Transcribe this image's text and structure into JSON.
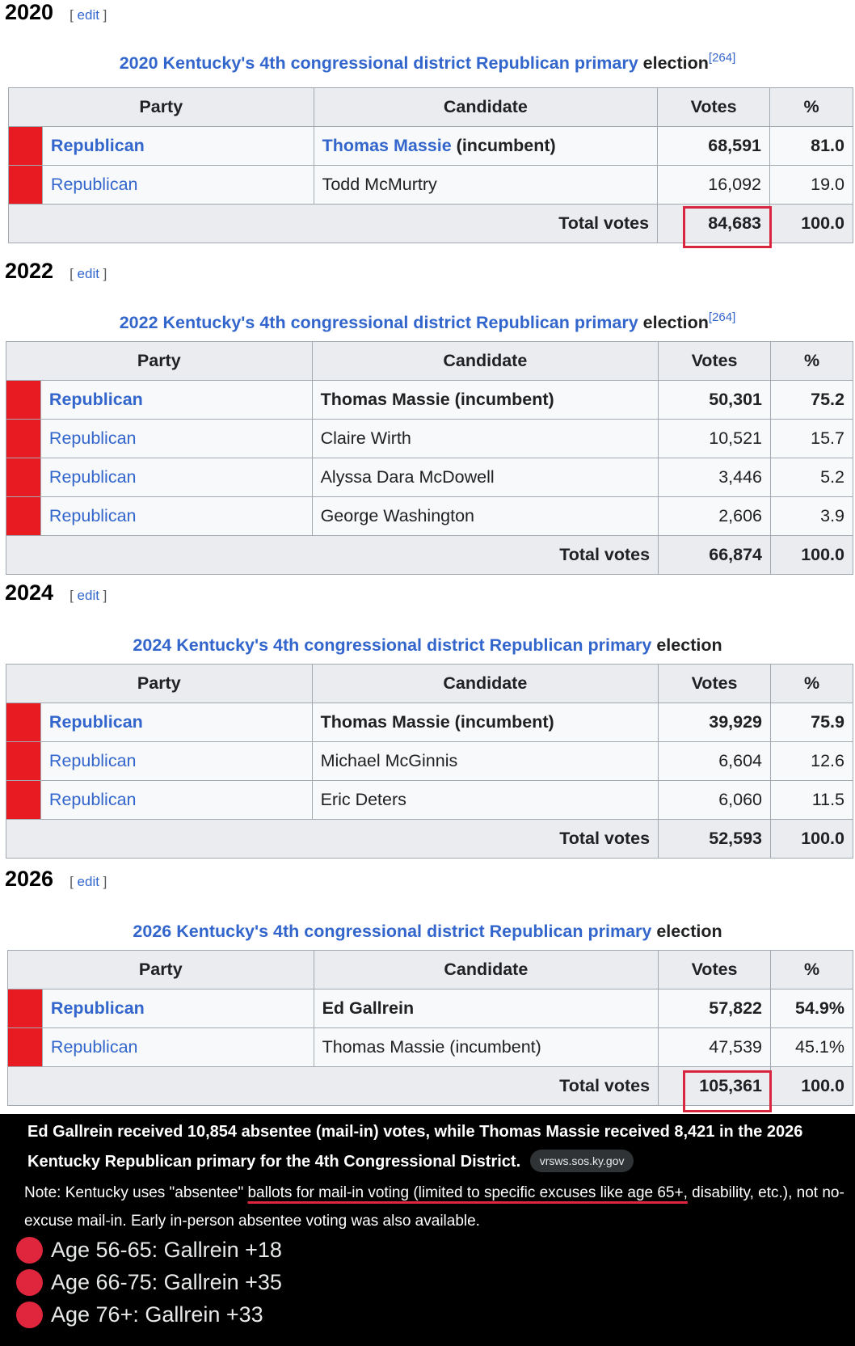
{
  "edit_label": "edit",
  "col_headers": {
    "party": "Party",
    "candidate": "Candidate",
    "votes": "Votes",
    "pct": "%"
  },
  "total_label": "Total votes",
  "sections": [
    {
      "year": "2020",
      "caption_link": "2020 Kentucky's 4th congressional district Republican primary",
      "caption_rest": " election",
      "caption_ref": "[264]",
      "rows": [
        {
          "party": "Republican",
          "candidate": "Thomas Massie",
          "suffix": " (incumbent)",
          "votes": "68,591",
          "pct": "81.0"
        },
        {
          "party": "Republican",
          "candidate": "Todd McMurtry",
          "suffix": "",
          "votes": "16,092",
          "pct": "19.0"
        }
      ],
      "total": {
        "votes": "84,683",
        "pct": "100.0"
      }
    },
    {
      "year": "2022",
      "caption_link": "2022 Kentucky's 4th congressional district Republican primary",
      "caption_rest": " election",
      "caption_ref": "[264]",
      "rows": [
        {
          "party": "Republican",
          "candidate": "Thomas Massie (incumbent)",
          "votes": "50,301",
          "pct": "75.2"
        },
        {
          "party": "Republican",
          "candidate": "Claire Wirth",
          "votes": "10,521",
          "pct": "15.7"
        },
        {
          "party": "Republican",
          "candidate": "Alyssa Dara McDowell",
          "votes": "3,446",
          "pct": "5.2"
        },
        {
          "party": "Republican",
          "candidate": "George Washington",
          "votes": "2,606",
          "pct": "3.9"
        }
      ],
      "total": {
        "votes": "66,874",
        "pct": "100.0"
      }
    },
    {
      "year": "2024",
      "caption_link": "2024 Kentucky's 4th congressional district Republican primary",
      "caption_rest": " election",
      "rows": [
        {
          "party": "Republican",
          "candidate": "Thomas Massie (incumbent)",
          "votes": "39,929",
          "pct": "75.9"
        },
        {
          "party": "Republican",
          "candidate": "Michael McGinnis",
          "votes": "6,604",
          "pct": "12.6"
        },
        {
          "party": "Republican",
          "candidate": "Eric Deters",
          "votes": "6,060",
          "pct": "11.5"
        }
      ],
      "total": {
        "votes": "52,593",
        "pct": "100.0"
      }
    },
    {
      "year": "2026",
      "caption_link": "2026 Kentucky's 4th congressional district Republican primary",
      "caption_rest": " election",
      "rows": [
        {
          "party": "Republican",
          "candidate": "Ed Gallrein",
          "votes": "57,822",
          "pct": "54.9%"
        },
        {
          "party": "Republican",
          "candidate": "Thomas Massie (incumbent)",
          "votes": "47,539",
          "pct": "45.1%"
        }
      ],
      "total": {
        "votes": "105,361",
        "pct": "100.0"
      }
    }
  ],
  "post": {
    "summary": "Ed Gallrein received 10,854 absentee (mail-in) votes, while Thomas Massie received 8,421 in the 2026 Kentucky Republican primary for the 4th Congressional District.",
    "source_chip": "vrsws.sos.ky.gov",
    "note_before": "Note: Kentucky uses \"absentee\" ",
    "note_underlined": "ballots for mail-in voting (limited to specific excuses like age 65+,",
    "note_after": " disability, etc.), not no-excuse mail-in. Early in-person absentee voting was also available.",
    "bullets": [
      "Age 56-65: Gallrein +18",
      "Age 66-75: Gallrein +35",
      "Age 76+: Gallrein +33"
    ]
  },
  "colors": {
    "republican": "#e81b23",
    "link": "#3366cc",
    "highlight": "#d7263d"
  }
}
